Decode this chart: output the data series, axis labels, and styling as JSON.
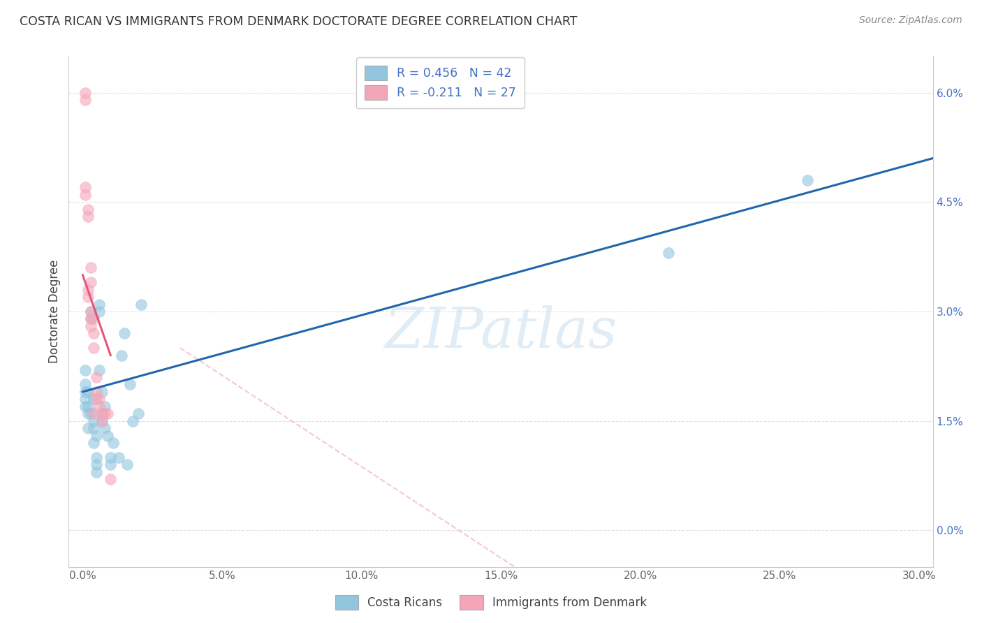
{
  "title": "COSTA RICAN VS IMMIGRANTS FROM DENMARK DOCTORATE DEGREE CORRELATION CHART",
  "source": "Source: ZipAtlas.com",
  "xlim": [
    -0.005,
    0.305
  ],
  "ylim": [
    -0.005,
    0.065
  ],
  "ylabel": "Doctorate Degree",
  "legend1_label": "R = 0.456   N = 42",
  "legend2_label": "R = -0.211   N = 27",
  "legend_footer1": "Costa Ricans",
  "legend_footer2": "Immigrants from Denmark",
  "blue_color": "#92c5de",
  "pink_color": "#f4a6b8",
  "blue_line_color": "#2166ac",
  "pink_line_color": "#e8547a",
  "dash_color": "#f4c2cc",
  "blue_scatter": [
    [
      0.001,
      0.022
    ],
    [
      0.001,
      0.02
    ],
    [
      0.001,
      0.019
    ],
    [
      0.001,
      0.018
    ],
    [
      0.001,
      0.017
    ],
    [
      0.002,
      0.019
    ],
    [
      0.002,
      0.017
    ],
    [
      0.002,
      0.016
    ],
    [
      0.002,
      0.014
    ],
    [
      0.003,
      0.016
    ],
    [
      0.003,
      0.029
    ],
    [
      0.003,
      0.03
    ],
    [
      0.004,
      0.018
    ],
    [
      0.004,
      0.015
    ],
    [
      0.004,
      0.014
    ],
    [
      0.004,
      0.012
    ],
    [
      0.005,
      0.013
    ],
    [
      0.005,
      0.01
    ],
    [
      0.005,
      0.009
    ],
    [
      0.005,
      0.008
    ],
    [
      0.006,
      0.031
    ],
    [
      0.006,
      0.03
    ],
    [
      0.006,
      0.022
    ],
    [
      0.007,
      0.019
    ],
    [
      0.007,
      0.016
    ],
    [
      0.007,
      0.015
    ],
    [
      0.008,
      0.017
    ],
    [
      0.008,
      0.014
    ],
    [
      0.009,
      0.013
    ],
    [
      0.01,
      0.009
    ],
    [
      0.01,
      0.01
    ],
    [
      0.011,
      0.012
    ],
    [
      0.013,
      0.01
    ],
    [
      0.014,
      0.024
    ],
    [
      0.015,
      0.027
    ],
    [
      0.016,
      0.009
    ],
    [
      0.017,
      0.02
    ],
    [
      0.018,
      0.015
    ],
    [
      0.02,
      0.016
    ],
    [
      0.021,
      0.031
    ],
    [
      0.21,
      0.038
    ],
    [
      0.26,
      0.048
    ]
  ],
  "pink_scatter": [
    [
      0.001,
      0.06
    ],
    [
      0.001,
      0.059
    ],
    [
      0.001,
      0.047
    ],
    [
      0.001,
      0.046
    ],
    [
      0.002,
      0.044
    ],
    [
      0.002,
      0.043
    ],
    [
      0.002,
      0.033
    ],
    [
      0.002,
      0.032
    ],
    [
      0.003,
      0.036
    ],
    [
      0.003,
      0.034
    ],
    [
      0.003,
      0.03
    ],
    [
      0.003,
      0.029
    ],
    [
      0.003,
      0.028
    ],
    [
      0.004,
      0.029
    ],
    [
      0.004,
      0.027
    ],
    [
      0.004,
      0.025
    ],
    [
      0.005,
      0.021
    ],
    [
      0.005,
      0.019
    ],
    [
      0.005,
      0.018
    ],
    [
      0.006,
      0.018
    ],
    [
      0.006,
      0.017
    ],
    [
      0.007,
      0.016
    ],
    [
      0.007,
      0.015
    ],
    [
      0.008,
      0.016
    ],
    [
      0.009,
      0.016
    ],
    [
      0.01,
      0.007
    ],
    [
      0.004,
      0.016
    ]
  ],
  "blue_line_x": [
    0.0,
    0.305
  ],
  "blue_line_y": [
    0.019,
    0.051
  ],
  "pink_line_x": [
    0.0,
    0.01
  ],
  "pink_line_y": [
    0.035,
    0.024
  ],
  "dash_line_x": [
    0.035,
    0.155
  ],
  "dash_line_y": [
    0.025,
    -0.005
  ],
  "watermark_text": "ZIPatlas",
  "background_color": "#ffffff",
  "grid_color": "#dddddd",
  "ytick_color": "#4472c4",
  "xtick_color": "#666666",
  "xticks": [
    0.0,
    0.05,
    0.1,
    0.15,
    0.2,
    0.25,
    0.3
  ],
  "yticks": [
    0.0,
    0.015,
    0.03,
    0.045,
    0.06
  ]
}
